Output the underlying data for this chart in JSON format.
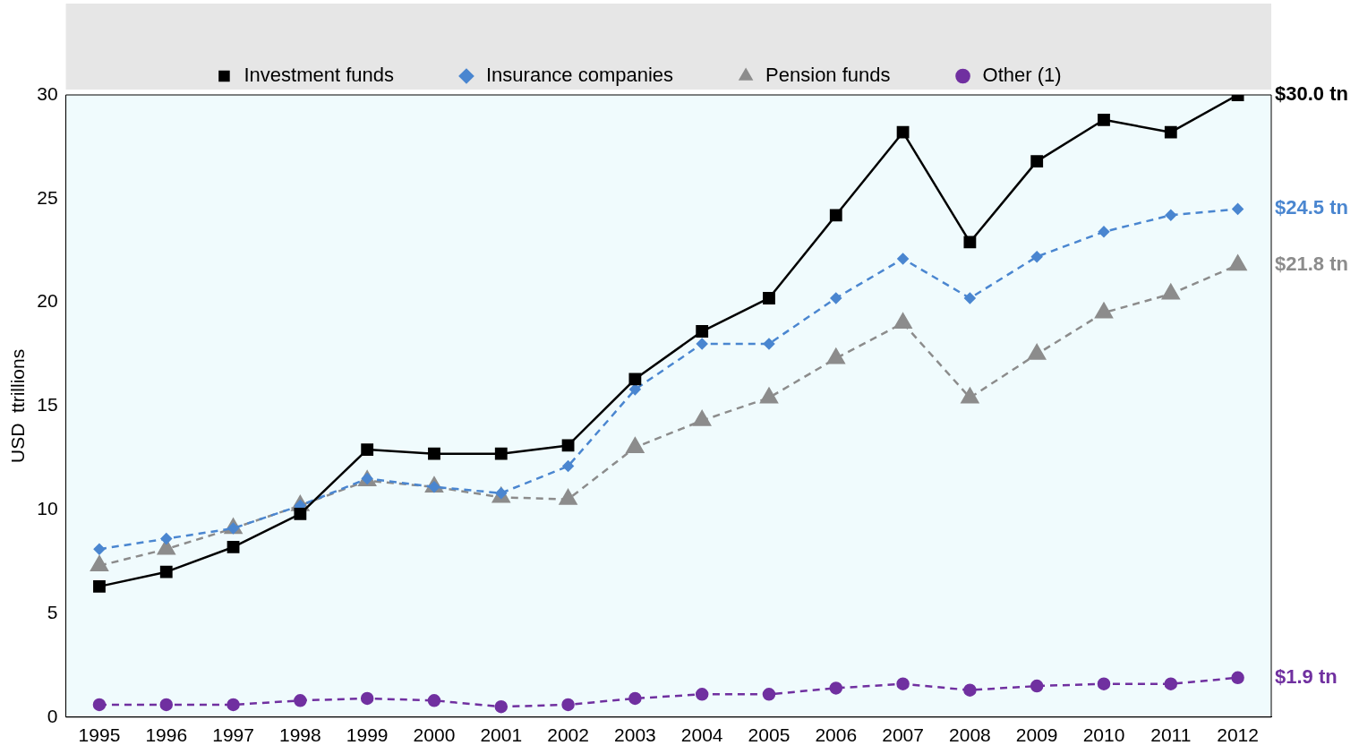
{
  "chart_data": {
    "type": "line",
    "ylabel": "USD  ttrillions",
    "categories": [
      "1995",
      "1996",
      "1997",
      "1998",
      "1999",
      "2000",
      "2001",
      "2002",
      "2003",
      "2004",
      "2005",
      "2006",
      "2007",
      "2008",
      "2009",
      "2010",
      "2011",
      "2012"
    ],
    "series": [
      {
        "name": "Investment funds",
        "color": "#000000",
        "marker": "square",
        "line_style": "solid",
        "values": [
          6.3,
          7.0,
          8.2,
          9.8,
          12.9,
          12.7,
          12.7,
          13.1,
          16.3,
          18.6,
          20.2,
          24.2,
          28.2,
          22.9,
          26.8,
          28.8,
          28.2,
          30.0
        ]
      },
      {
        "name": "Insurance companies",
        "color": "#4a86d0",
        "marker": "diamond",
        "line_style": "dashed",
        "values": [
          8.1,
          8.6,
          9.1,
          10.2,
          11.5,
          11.1,
          10.8,
          12.1,
          15.8,
          18.0,
          18.0,
          20.2,
          22.1,
          20.2,
          22.2,
          23.4,
          24.2,
          24.5
        ]
      },
      {
        "name": "Pension funds",
        "color": "#8c8c8c",
        "marker": "triangle",
        "line_style": "dashed",
        "values": [
          7.3,
          8.1,
          9.1,
          10.2,
          11.4,
          11.1,
          10.6,
          10.5,
          13.0,
          14.3,
          15.4,
          17.3,
          19.0,
          15.4,
          17.5,
          19.5,
          20.4,
          21.8
        ]
      },
      {
        "name": "Other (1)",
        "color": "#7030a0",
        "marker": "circle",
        "line_style": "dashed",
        "values": [
          0.6,
          0.6,
          0.6,
          0.8,
          0.9,
          0.8,
          0.5,
          0.6,
          0.9,
          1.1,
          1.1,
          1.4,
          1.6,
          1.3,
          1.5,
          1.6,
          1.6,
          1.9
        ]
      }
    ],
    "annotations": [
      {
        "text": "$30.0 tn",
        "x": "2012",
        "y": 30.0
      },
      {
        "text": "$24.5 tn",
        "x": "2012",
        "y": 24.5
      },
      {
        "text": "$21.8 tn",
        "x": "2012",
        "y": 21.8
      },
      {
        "text": "$1.9 tn",
        "x": "2012",
        "y": 1.9
      }
    ],
    "ylim": [
      0,
      30
    ],
    "yticks": [
      0,
      5,
      10,
      15,
      20,
      25,
      30
    ],
    "grid": false,
    "legend": "top"
  }
}
